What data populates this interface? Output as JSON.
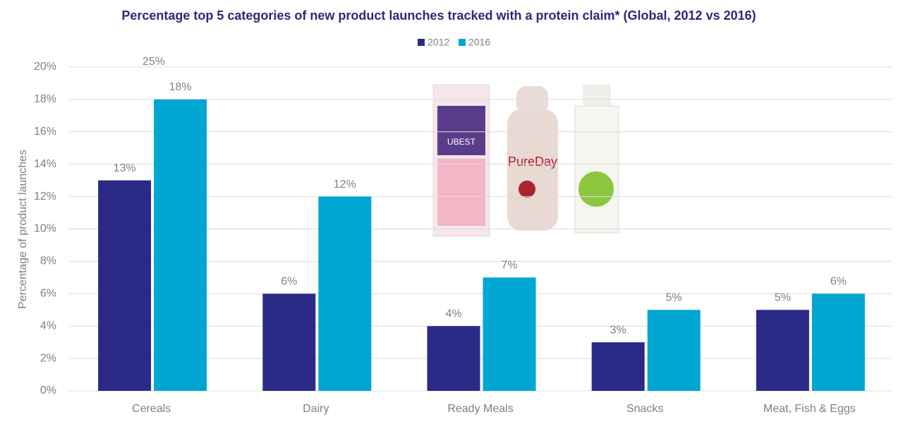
{
  "chart_data": {
    "type": "bar",
    "title": "Percentage top 5 categories of new product launches tracked with a protein claim* (Global, 2012 vs 2016)",
    "y_label": "Percentage of product launches",
    "categories": [
      "Cereals",
      "Dairy",
      "Ready Meals",
      "Snacks",
      "Meat, Fish & Eggs"
    ],
    "series": [
      {
        "name": "2012",
        "color": "#2b2a87",
        "values": [
          13,
          6,
          4,
          3,
          5
        ],
        "value_labels": [
          "13%",
          "6%",
          "4%",
          "3%",
          "5%"
        ]
      },
      {
        "name": "2016",
        "color": "#00a6d2",
        "values": [
          18,
          12,
          7,
          5,
          6
        ],
        "value_labels": [
          "18%",
          "12%",
          "7%",
          "5%",
          "6%"
        ]
      }
    ],
    "ylim": [
      0,
      20
    ],
    "yticks": [
      {
        "value": 0,
        "label": "0%"
      },
      {
        "value": 2,
        "label": "2%"
      },
      {
        "value": 4,
        "label": "4%"
      },
      {
        "value": 6,
        "label": "6%"
      },
      {
        "value": 8,
        "label": "8%"
      },
      {
        "value": 10,
        "label": "10%"
      },
      {
        "value": 12,
        "label": "12%"
      },
      {
        "value": 14,
        "label": "14%"
      },
      {
        "value": 16,
        "label": "16%"
      },
      {
        "value": 18,
        "label": "18%"
      },
      {
        "value": 20,
        "label": "20%"
      }
    ],
    "grid": true,
    "legend": "top",
    "annotations": [
      "25%"
    ],
    "product_labels": [
      "UBEST",
      "PureDay"
    ]
  }
}
